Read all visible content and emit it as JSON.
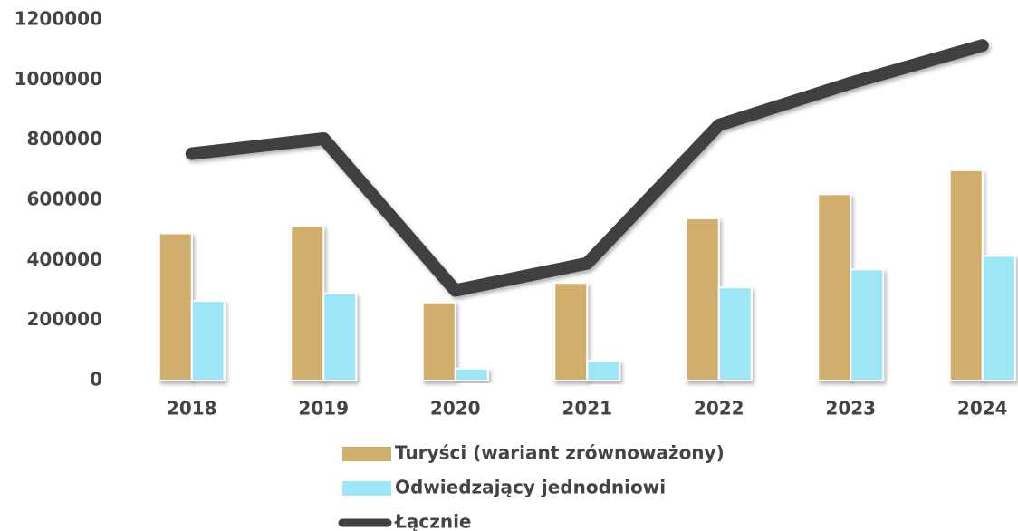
{
  "chart_data": {
    "type": "bar-line",
    "categories": [
      "2018",
      "2019",
      "2020",
      "2021",
      "2022",
      "2023",
      "2024"
    ],
    "series": [
      {
        "name": "Turyści (wariant zrównoważony)",
        "color": "#d2ae6d",
        "kind": "bar",
        "values": [
          490000,
          515000,
          260000,
          325000,
          540000,
          620000,
          700000
        ]
      },
      {
        "name": "Odwiedzający jednodniowi",
        "color": "#9de6f7",
        "kind": "bar",
        "values": [
          265000,
          290000,
          40000,
          65000,
          310000,
          370000,
          415000
        ]
      },
      {
        "name": "Łącznie",
        "color": "#404040",
        "kind": "line",
        "values": [
          755000,
          805000,
          300000,
          390000,
          850000,
          990000,
          1115000
        ]
      }
    ],
    "ylim": [
      0,
      1200000
    ],
    "yticks": [
      0,
      200000,
      400000,
      600000,
      800000,
      1000000,
      1200000
    ],
    "grid": false
  }
}
